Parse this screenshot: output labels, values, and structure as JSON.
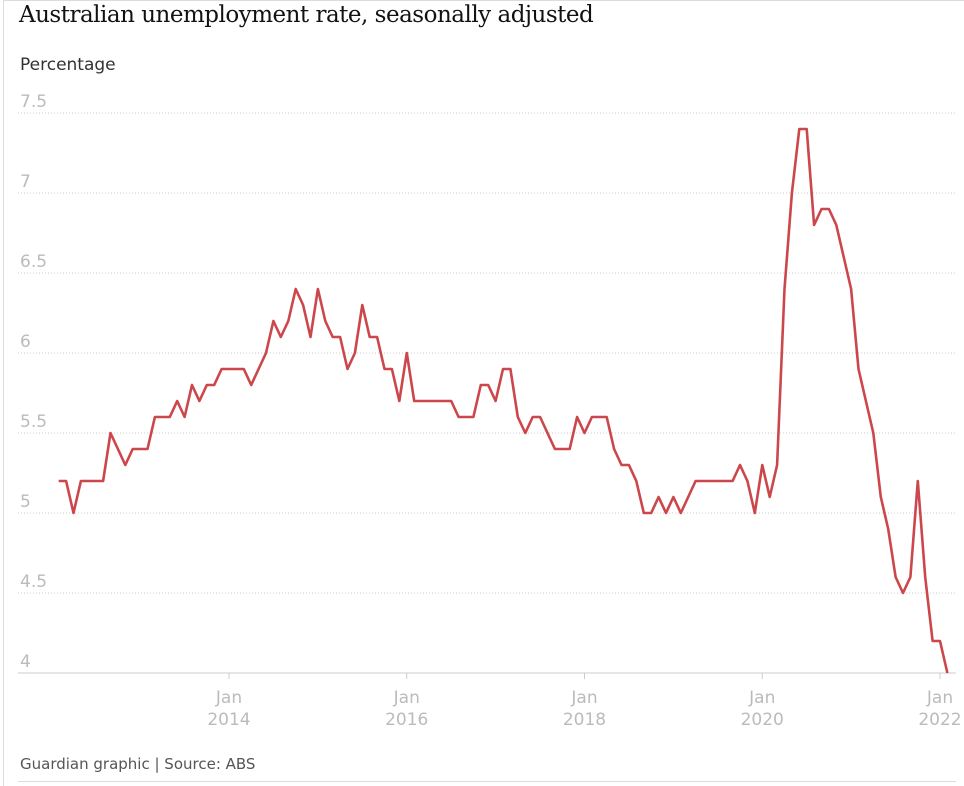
{
  "chart_data": {
    "type": "line",
    "title": "Australian unemployment rate, seasonally adjusted",
    "ylabel": "Percentage",
    "xlabel": "",
    "source": "Guardian graphic | Source: ABS",
    "ylim": [
      4,
      7.5
    ],
    "yticks": [
      "7.5",
      "7",
      "6.5",
      "6",
      "5.5",
      "5",
      "4.5",
      "4"
    ],
    "xticks": [
      {
        "line1": "Jan",
        "line2": "2014",
        "date": "2014-01"
      },
      {
        "line1": "Jan",
        "line2": "2016",
        "date": "2016-01"
      },
      {
        "line1": "Jan",
        "line2": "2018",
        "date": "2018-01"
      },
      {
        "line1": "Jan",
        "line2": "2020",
        "date": "2020-01"
      },
      {
        "line1": "Jan",
        "line2": "2022",
        "date": "2022-01"
      }
    ],
    "grid": true,
    "line_color": "#c70000",
    "start_month": "2012-02",
    "end_month": "2022-02",
    "values": [
      5.2,
      5.2,
      5.0,
      5.2,
      5.2,
      5.2,
      5.2,
      5.5,
      5.4,
      5.3,
      5.4,
      5.4,
      5.4,
      5.6,
      5.6,
      5.6,
      5.7,
      5.6,
      5.8,
      5.7,
      5.8,
      5.8,
      5.9,
      5.9,
      5.9,
      5.9,
      5.8,
      5.9,
      6.0,
      6.2,
      6.1,
      6.2,
      6.4,
      6.3,
      6.1,
      6.4,
      6.2,
      6.1,
      6.1,
      5.9,
      6.0,
      6.3,
      6.1,
      6.1,
      5.9,
      5.9,
      5.7,
      6.0,
      5.7,
      5.7,
      5.7,
      5.7,
      5.7,
      5.7,
      5.6,
      5.6,
      5.6,
      5.8,
      5.8,
      5.7,
      5.9,
      5.9,
      5.6,
      5.5,
      5.6,
      5.6,
      5.5,
      5.4,
      5.4,
      5.4,
      5.6,
      5.5,
      5.6,
      5.6,
      5.6,
      5.4,
      5.3,
      5.3,
      5.2,
      5.0,
      5.0,
      5.1,
      5.0,
      5.1,
      5.0,
      5.1,
      5.2,
      5.2,
      5.2,
      5.2,
      5.2,
      5.2,
      5.3,
      5.2,
      5.0,
      5.3,
      5.1,
      5.3,
      6.4,
      7.0,
      7.4,
      7.4,
      6.8,
      6.9,
      6.9,
      6.8,
      6.6,
      6.4,
      5.9,
      5.7,
      5.5,
      5.1,
      4.9,
      4.6,
      4.5,
      4.6,
      5.2,
      4.6,
      4.2,
      4.2,
      4.0
    ]
  }
}
